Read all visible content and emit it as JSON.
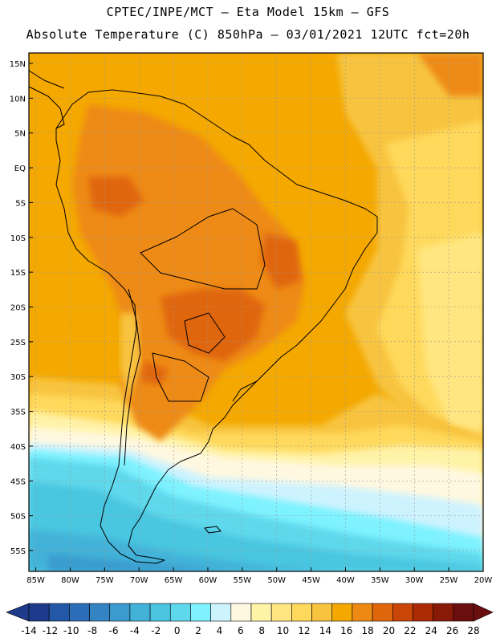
{
  "header": {
    "line1": "CPTEC/INPE/MCT –  Eta Model 15km – GFS",
    "line2": "Absolute Temperature (C) 850hPa – 03/01/2021 12UTC fct=20h"
  },
  "axes": {
    "lat_labels": [
      "15N",
      "10N",
      "5N",
      "EQ",
      "5S",
      "10S",
      "15S",
      "20S",
      "25S",
      "30S",
      "35S",
      "40S",
      "45S",
      "50S",
      "55S"
    ],
    "lat_values": [
      15,
      10,
      5,
      0,
      -5,
      -10,
      -15,
      -20,
      -25,
      -30,
      -35,
      -40,
      -45,
      -50,
      -55
    ],
    "lon_labels": [
      "85W",
      "80W",
      "75W",
      "70W",
      "65W",
      "60W",
      "55W",
      "50W",
      "45W",
      "40W",
      "35W",
      "30W",
      "25W",
      "20W"
    ],
    "lon_values": [
      -85,
      -80,
      -75,
      -70,
      -65,
      -60,
      -55,
      -50,
      -45,
      -40,
      -35,
      -30,
      -25,
      -20
    ],
    "lat_range": [
      -58,
      16.5
    ],
    "lon_range": [
      -86,
      -20
    ]
  },
  "colorbar": {
    "labels": [
      "-14",
      "-12",
      "-10",
      "-8",
      "-6",
      "-4",
      "-2",
      "0",
      "2",
      "4",
      "6",
      "8",
      "10",
      "12",
      "14",
      "16",
      "18",
      "20",
      "22",
      "24",
      "26",
      "28"
    ],
    "colors": [
      "#1e3a8a",
      "#2457a6",
      "#2c6db8",
      "#3484c4",
      "#3b9bcf",
      "#43b2d8",
      "#4ac6e0",
      "#5ed8ec",
      "#7ef2ff",
      "#cdf3ff",
      "#fff8e0",
      "#fff3a8",
      "#ffe680",
      "#ffd95c",
      "#f8c440",
      "#f4a800",
      "#ee8a14",
      "#e0660c",
      "#c94608",
      "#ad2a06",
      "#8a1a08",
      "#6a0e10"
    ]
  },
  "map": {
    "field_colors": {
      "c16": "#f4a800",
      "c14": "#f8c440",
      "c18": "#ee8a14",
      "c20": "#e0660c",
      "c12": "#ffd95c",
      "c10": "#ffe680",
      "c8": "#fff3a8",
      "c6": "#fff8e0",
      "c4": "#cdf3ff",
      "c2": "#7ef2ff",
      "c0": "#5ed8ec",
      "cm2": "#4ac6e0",
      "cm4": "#43b2d8",
      "cm6": "#3b9bcf"
    },
    "coast_color": "#000000",
    "grid_color": "#9a9a9a"
  }
}
